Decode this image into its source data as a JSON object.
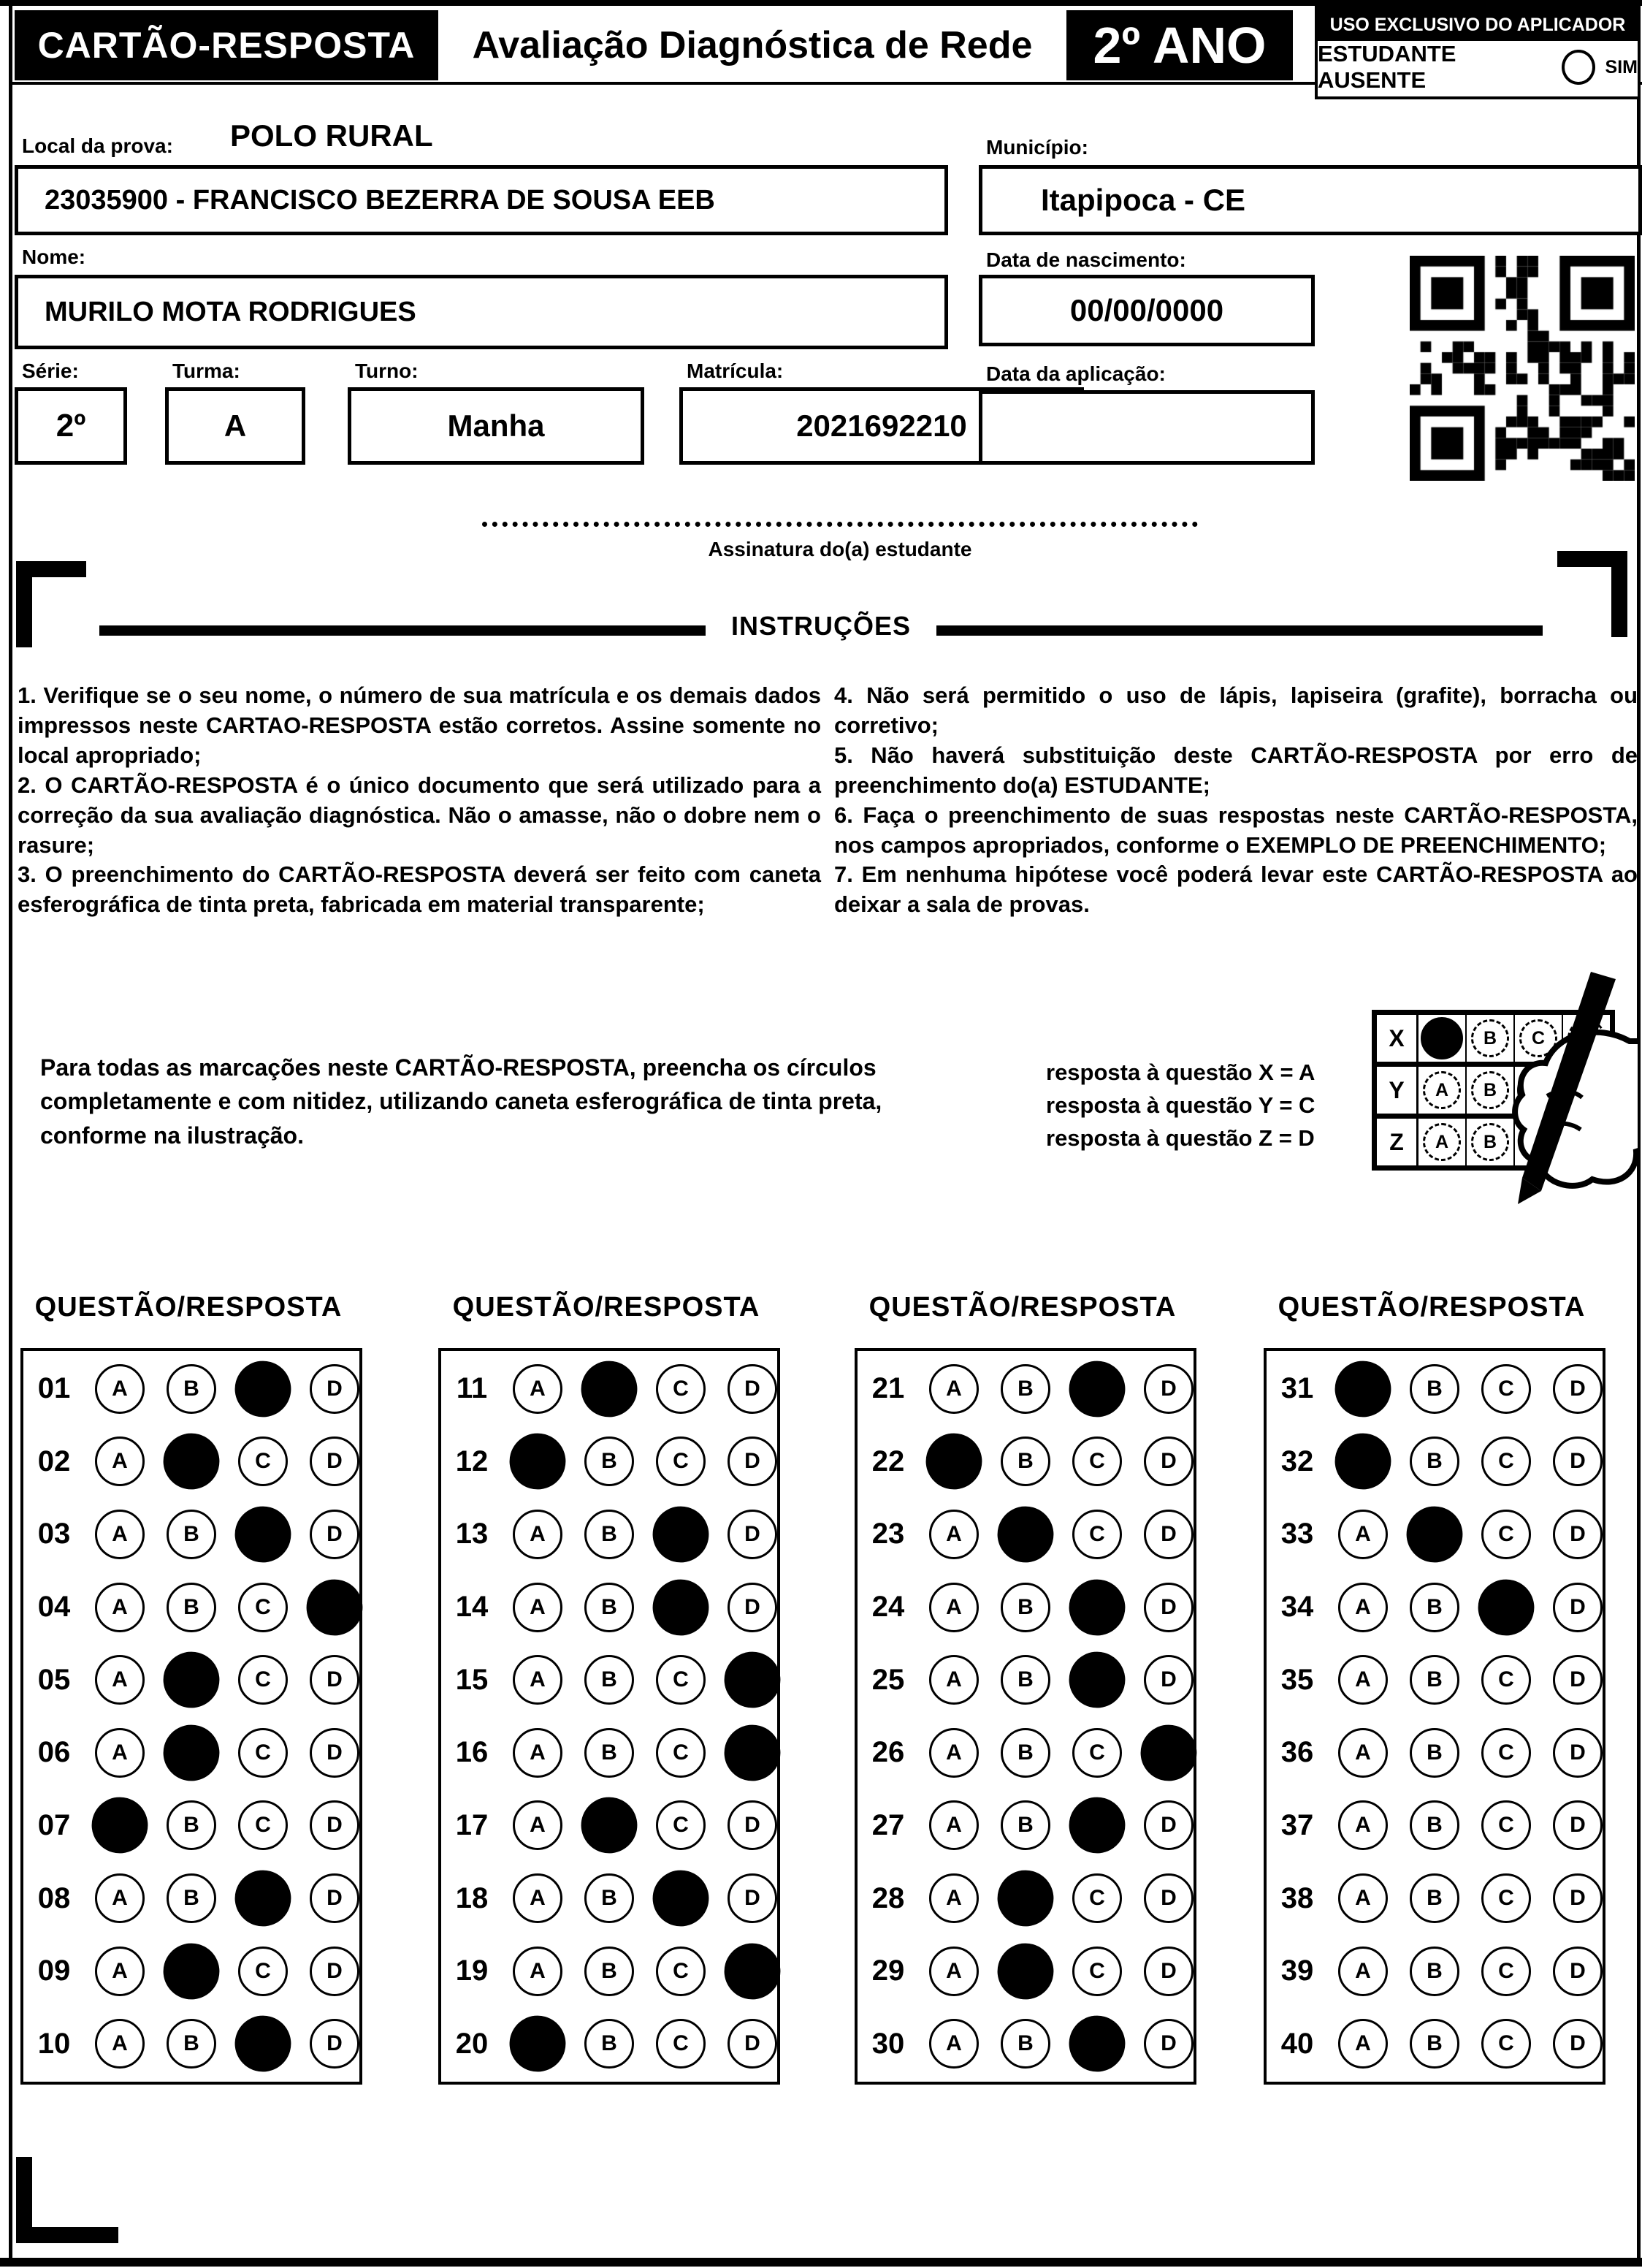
{
  "header": {
    "card_title": "CARTÃO-RESPOSTA",
    "exam_title": "Avaliação Diagnóstica de Rede",
    "grade": "2º ANO",
    "applicator_title": "USO EXCLUSIVO DO APLICADOR",
    "absent_label": "ESTUDANTE AUSENTE",
    "absent_option": "SIM"
  },
  "form": {
    "local_label": "Local da prova:",
    "local_value": "POLO RURAL",
    "school_value": "23035900 - FRANCISCO BEZERRA DE SOUSA EEB",
    "municipio_label": "Município:",
    "municipio_value": "Itapipoca - CE",
    "nome_label": "Nome:",
    "nome_value": "MURILO MOTA RODRIGUES",
    "nascimento_label": "Data de nascimento:",
    "nascimento_value": "00/00/0000",
    "serie_label": "Série:",
    "serie_value": "2º",
    "turma_label": "Turma:",
    "turma_value": "A",
    "turno_label": "Turno:",
    "turno_value": "Manha",
    "matricula_label": "Matrícula:",
    "matricula_value": "2021692210",
    "aplicacao_label": "Data da aplicação:",
    "aplicacao_value": ""
  },
  "signature": {
    "label": "Assinatura do(a) estudante"
  },
  "instructions": {
    "title": "INSTRUÇÕES",
    "left": [
      "1. Verifique se o seu nome, o número de sua matrícula e os demais dados impressos neste CARTAO-RESPOSTA estão corretos. Assine somente no local apropriado;",
      "2. O CARTÃO-RESPOSTA é o único documento que será utilizado para a correção da sua avaliação diagnóstica. Não o amasse, não o dobre nem o rasure;",
      "3. O preenchimento do CARTÃO-RESPOSTA deverá ser feito com caneta esferográfica de tinta preta, fabricada em material transparente;"
    ],
    "right": [
      "4. Não será permitido o uso de lápis, lapiseira (grafite), borracha ou corretivo;",
      "5. Não haverá substituição deste CARTÃO-RESPOSTA por erro de preenchimento do(a) ESTUDANTE;",
      "6. Faça o preenchimento de suas respostas neste CARTÃO-RESPOSTA, nos campos apropriados, conforme o EXEMPLO DE PREENCHIMENTO;",
      "7. Em nenhuma hipótese você poderá levar este CARTÃO-RESPOSTA ao deixar a sala de provas."
    ],
    "fill_note": "Para todas as marcações neste CARTÃO-RESPOSTA, preencha os círculos completamente e com nitidez, utilizando caneta esferográfica de tinta preta, conforme na ilustração.",
    "example_lines": [
      "resposta à questão X = A",
      "resposta à questão Y = C",
      "resposta à questão Z = D"
    ],
    "example_rows": [
      {
        "label": "X",
        "filled": "A"
      },
      {
        "label": "Y",
        "filled": "C"
      },
      {
        "label": "Z",
        "filled": "D"
      }
    ]
  },
  "answers": {
    "section_title": "QUESTÃO/RESPOSTA",
    "options": [
      "A",
      "B",
      "C",
      "D"
    ],
    "columns": [
      {
        "questions": [
          {
            "n": "01",
            "marked": "C"
          },
          {
            "n": "02",
            "marked": "B"
          },
          {
            "n": "03",
            "marked": "C"
          },
          {
            "n": "04",
            "marked": "D"
          },
          {
            "n": "05",
            "marked": "B"
          },
          {
            "n": "06",
            "marked": "B"
          },
          {
            "n": "07",
            "marked": "A"
          },
          {
            "n": "08",
            "marked": "C"
          },
          {
            "n": "09",
            "marked": "B"
          },
          {
            "n": "10",
            "marked": "C"
          }
        ]
      },
      {
        "questions": [
          {
            "n": "11",
            "marked": "B"
          },
          {
            "n": "12",
            "marked": "A"
          },
          {
            "n": "13",
            "marked": "C"
          },
          {
            "n": "14",
            "marked": "C"
          },
          {
            "n": "15",
            "marked": "D"
          },
          {
            "n": "16",
            "marked": "D"
          },
          {
            "n": "17",
            "marked": "B"
          },
          {
            "n": "18",
            "marked": "C"
          },
          {
            "n": "19",
            "marked": "D"
          },
          {
            "n": "20",
            "marked": "A"
          }
        ]
      },
      {
        "questions": [
          {
            "n": "21",
            "marked": "C"
          },
          {
            "n": "22",
            "marked": "A"
          },
          {
            "n": "23",
            "marked": "B"
          },
          {
            "n": "24",
            "marked": "C"
          },
          {
            "n": "25",
            "marked": "C"
          },
          {
            "n": "26",
            "marked": "D"
          },
          {
            "n": "27",
            "marked": "C"
          },
          {
            "n": "28",
            "marked": "B"
          },
          {
            "n": "29",
            "marked": "B"
          },
          {
            "n": "30",
            "marked": "C"
          }
        ]
      },
      {
        "questions": [
          {
            "n": "31",
            "marked": "A"
          },
          {
            "n": "32",
            "marked": "A"
          },
          {
            "n": "33",
            "marked": "B"
          },
          {
            "n": "34",
            "marked": "C"
          },
          {
            "n": "35",
            "marked": null
          },
          {
            "n": "36",
            "marked": null
          },
          {
            "n": "37",
            "marked": null
          },
          {
            "n": "38",
            "marked": null
          },
          {
            "n": "39",
            "marked": null
          },
          {
            "n": "40",
            "marked": null
          }
        ]
      }
    ]
  },
  "colors": {
    "ink": "#000000",
    "paper": "#ffffff"
  }
}
